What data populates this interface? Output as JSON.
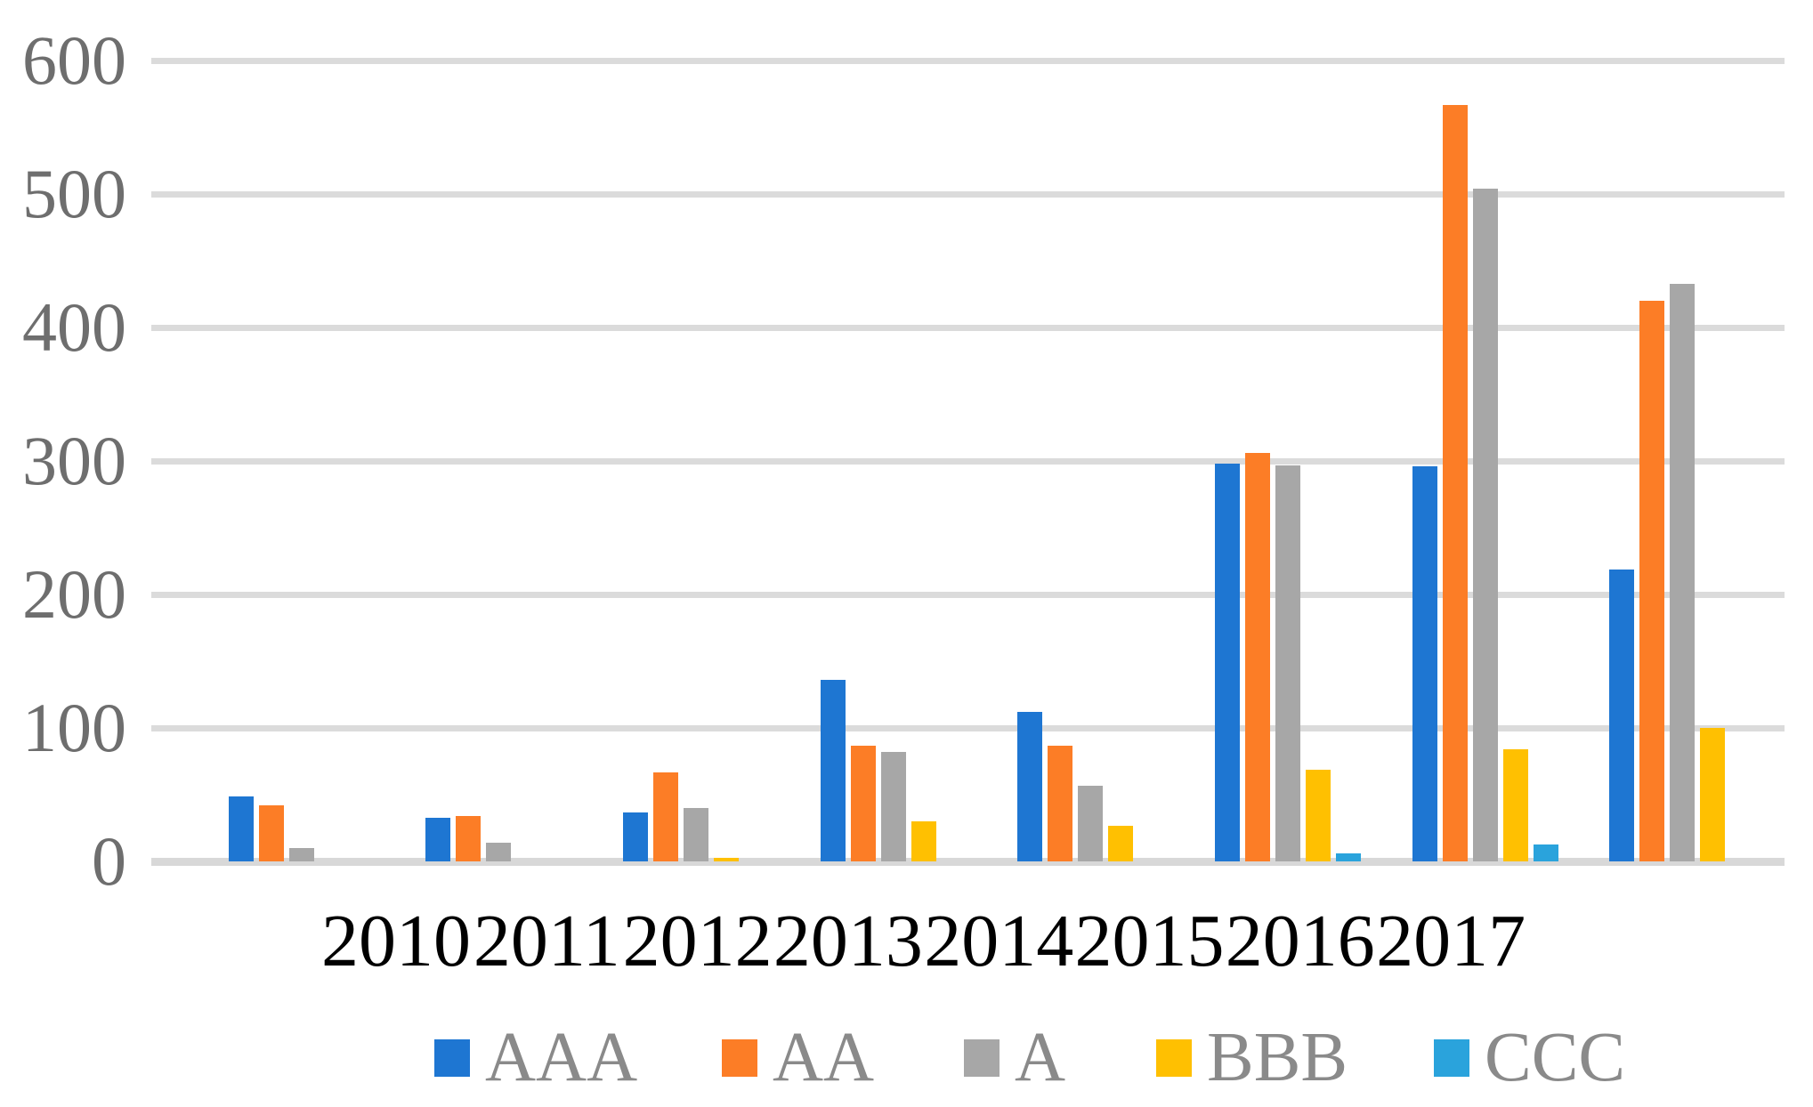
{
  "chart_data": {
    "type": "bar",
    "title": "",
    "xlabel": "",
    "ylabel": "",
    "categories": [
      "2010",
      "2011",
      "2012",
      "2013",
      "2014",
      "2015",
      "2016",
      "2017"
    ],
    "series": [
      {
        "name": "AAA",
        "color": "#1E76D2",
        "values": [
          49,
          33,
          37,
          136,
          112,
          298,
          296,
          219
        ]
      },
      {
        "name": "AA",
        "color": "#FC7D26",
        "values": [
          42,
          34,
          67,
          87,
          87,
          306,
          567,
          420
        ]
      },
      {
        "name": "A",
        "color": "#A7A7A7",
        "values": [
          10,
          14,
          40,
          82,
          57,
          297,
          504,
          433
        ]
      },
      {
        "name": "BBB",
        "color": "#FFC001",
        "values": [
          0,
          0,
          3,
          30,
          27,
          69,
          84,
          100
        ]
      },
      {
        "name": "CCC",
        "color": "#2AA3DC",
        "values": [
          0,
          0,
          0,
          0,
          0,
          6,
          13,
          0
        ]
      }
    ],
    "ylim": [
      0,
      600
    ],
    "yticks": [
      0,
      100,
      200,
      300,
      400,
      500,
      600
    ],
    "grid": true,
    "legend_position": "bottom"
  },
  "colors": {
    "gridline": "#DBDBDB",
    "axis_line": "#D8D8D8",
    "y_tick_text": "#6E6E6E",
    "x_tick_text": "#000000",
    "legend_text": "#8A8A8A",
    "background": "#FFFFFF"
  }
}
